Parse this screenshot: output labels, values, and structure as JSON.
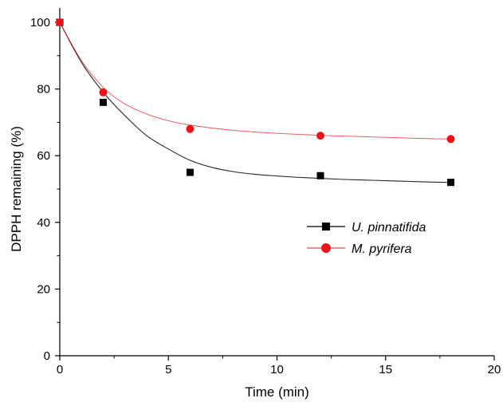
{
  "chart_data": {
    "type": "scatter",
    "xlabel": "Time (min)",
    "ylabel": "DPPH remaining (%)",
    "xlim": [
      0,
      20
    ],
    "ylim": [
      0,
      100
    ],
    "x_ticks": [
      0,
      5,
      10,
      15,
      20
    ],
    "y_ticks": [
      0,
      20,
      40,
      60,
      80,
      100
    ],
    "grid": false,
    "legend_position": "center-right",
    "series": [
      {
        "name": "U. pinnatifida",
        "marker": "square",
        "color": "#000000",
        "x": [
          0,
          2,
          6,
          12,
          18
        ],
        "y": [
          100,
          76,
          55,
          54,
          52
        ],
        "fit": {
          "model": "exponential decay",
          "x": [
            0,
            1,
            2,
            3,
            4,
            5,
            6,
            7,
            8,
            9,
            10,
            11,
            12,
            13,
            14,
            15,
            16,
            17,
            18
          ],
          "y": [
            100,
            88,
            79,
            72,
            66,
            62,
            58.6,
            56.5,
            55.2,
            54.4,
            53.9,
            53.5,
            53.2,
            52.9,
            52.7,
            52.5,
            52.3,
            52.1,
            52
          ]
        }
      },
      {
        "name": "M. pyrifera",
        "marker": "circle",
        "color": "#e8141a",
        "x": [
          0,
          2,
          6,
          12,
          18
        ],
        "y": [
          100,
          79,
          68,
          66,
          65
        ],
        "fit": {
          "model": "exponential decay",
          "x": [
            0,
            1,
            2,
            3,
            4,
            5,
            6,
            7,
            8,
            9,
            10,
            11,
            12,
            13,
            14,
            15,
            16,
            17,
            18
          ],
          "y": [
            100,
            88.5,
            80.5,
            75.5,
            72.5,
            70.5,
            69.2,
            68.3,
            67.6,
            67.1,
            66.7,
            66.4,
            66.1,
            65.9,
            65.7,
            65.5,
            65.3,
            65.1,
            65
          ]
        }
      }
    ]
  }
}
